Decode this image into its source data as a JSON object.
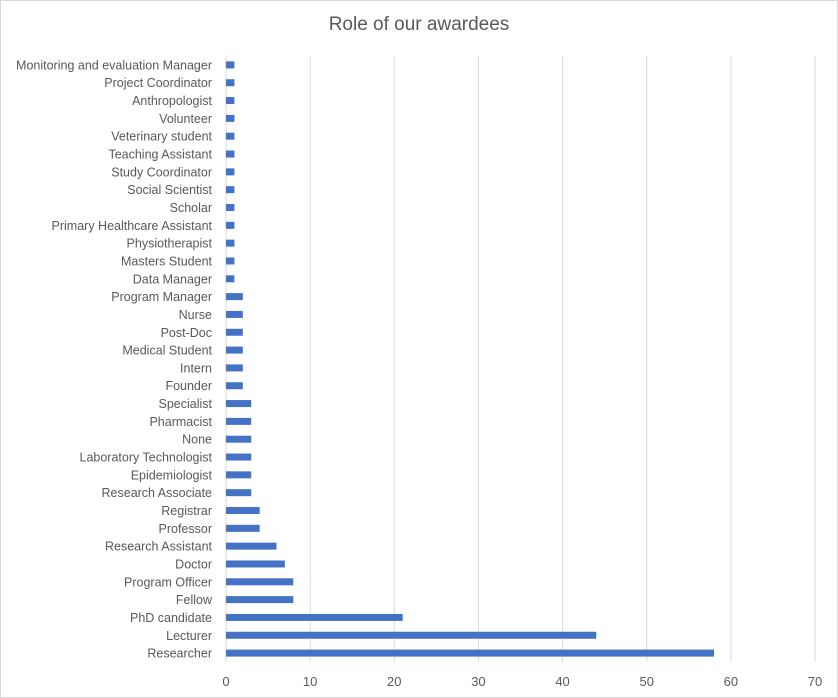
{
  "chart_data": {
    "type": "bar",
    "orientation": "horizontal",
    "title": "Role of our awardees",
    "xlabel": "",
    "ylabel": "",
    "xlim": [
      0,
      70
    ],
    "xticks": [
      "0",
      "10",
      "20",
      "30",
      "40",
      "50",
      "60",
      "70"
    ],
    "grid": "vertical",
    "legend": "none",
    "bar_color": "#4472c4",
    "grid_color": "#d9d9d9",
    "text_color": "#595959",
    "categories": [
      "Monitoring and evaluation Manager",
      "Project Coordinator",
      "Anthropologist",
      "Volunteer",
      "Veterinary student",
      "Teaching Assistant",
      "Study Coordinator",
      "Social Scientist",
      "Scholar",
      "Primary Healthcare Assistant",
      "Physiotherapist",
      "Masters Student",
      "Data Manager",
      "Program Manager",
      "Nurse",
      "Post-Doc",
      "Medical Student",
      "Intern",
      "Founder",
      "Specialist",
      "Pharmacist",
      "None",
      "Laboratory Technologist",
      "Epidemiologist",
      "Research Associate",
      "Registrar",
      "Professor",
      "Research Assistant",
      "Doctor",
      "Program Officer",
      "Fellow",
      "PhD candidate",
      "Lecturer",
      "Researcher"
    ],
    "values": [
      1,
      1,
      1,
      1,
      1,
      1,
      1,
      1,
      1,
      1,
      1,
      1,
      1,
      2,
      2,
      2,
      2,
      2,
      2,
      3,
      3,
      3,
      3,
      3,
      3,
      4,
      4,
      6,
      7,
      8,
      8,
      21,
      44,
      58
    ]
  }
}
